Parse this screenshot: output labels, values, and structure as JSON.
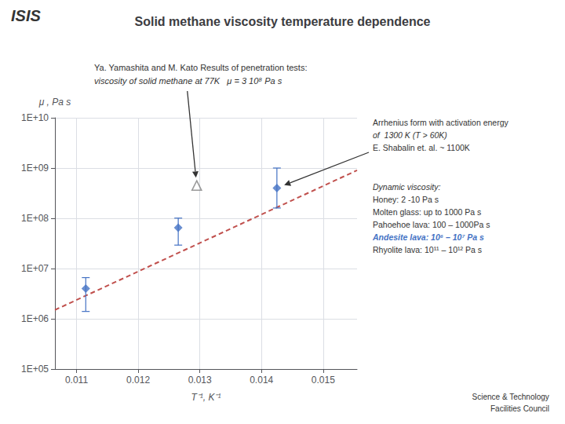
{
  "chart_data": {
    "type": "scatter",
    "title": "Solid methane viscosity temperature dependence",
    "subtitle": [
      "Ya. Yamashita and M. Kato Results of penetration tests:",
      "viscosity of solid methane at 77K   μ = 3 10⁸ Pa s"
    ],
    "xlabel": "T⁻¹, K⁻¹",
    "ylabel": "μ , Pa s",
    "xlim": [
      0.01065,
      0.01555
    ],
    "xticks": [
      0.011,
      0.012,
      0.013,
      0.014,
      0.015
    ],
    "ylim": [
      100000,
      10000000000
    ],
    "yticks": [
      {
        "value": 100000,
        "label": "1E+05"
      },
      {
        "value": 1000000,
        "label": "1E+06"
      },
      {
        "value": 10000000,
        "label": "1E+07"
      },
      {
        "value": 100000000,
        "label": "1E+08"
      },
      {
        "value": 1000000000,
        "label": "1E+09"
      },
      {
        "value": 10000000000,
        "label": "1E+10"
      }
    ],
    "log": "y",
    "grid": true,
    "series": [
      {
        "type": "scatter",
        "marker": "diamond",
        "color": "#4472C4",
        "x": [
          0.01115,
          0.01265,
          0.01425
        ],
        "values": [
          4000000,
          65000000,
          400000000
        ],
        "yerr_low": [
          2600000,
          35750000,
          240000000
        ],
        "yerr_high": [
          2600000,
          35750000,
          600000000
        ]
      },
      {
        "type": "scatter",
        "marker": "triangle_open",
        "color": "#808080",
        "x": [
          0.01295
        ],
        "values": [
          450000000
        ]
      },
      {
        "type": "line",
        "line_style": "dashed",
        "color": "#C0504D",
        "x": [
          0.01065,
          0.01555
        ],
        "values": [
          1500000,
          900000000
        ]
      }
    ],
    "annotations": [
      [
        {
          "text": "Arrhenius form with activation energy"
        },
        {
          "text": "of  1300 K (T > 60K)"
        },
        {
          "text": "E. Shabalin et. al. ~ 1100K"
        }
      ],
      [
        {
          "text": "Dynamic viscosity:"
        },
        {
          "text": "Honey: 2 -10 Pa s"
        },
        {
          "text": "Molten glass: up to 1000 Pa s"
        },
        {
          "text": "Pahoehoe lava: 100 – 1000Pa s"
        },
        {
          "text": "Andesite lava: 10⁶ – 10⁷ Pa s",
          "color": "#4472C4"
        },
        {
          "text": "Rhyolite lava: 10¹¹ – 10¹² Pa s"
        }
      ],
      [
        {
          "text": "ISIS"
        }
      ],
      [
        {
          "text": "Science & Technology"
        },
        {
          "text": "Facilities Council"
        }
      ]
    ]
  }
}
